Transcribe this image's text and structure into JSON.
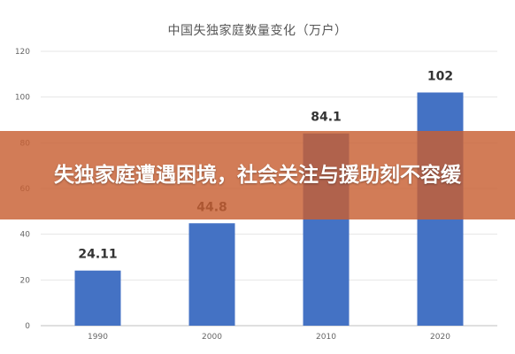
{
  "chart_data": {
    "type": "bar",
    "title": "中国失独家庭数量变化（万户）",
    "categories": [
      "1990",
      "2000",
      "2010",
      "2020"
    ],
    "values": [
      24.11,
      44.8,
      84.1,
      102
    ],
    "value_labels": [
      "24.11",
      "44.8",
      "84.1",
      "102"
    ],
    "ylim": [
      0,
      120
    ],
    "yticks": [
      "0",
      "20",
      "40",
      "60",
      "80",
      "100",
      "120"
    ],
    "grid": true,
    "bar_color": "#4472C4"
  },
  "overlay": {
    "headline": "失独家庭遭遇困境，社会关注与援助刻不容缓",
    "color": "#C85F32"
  }
}
